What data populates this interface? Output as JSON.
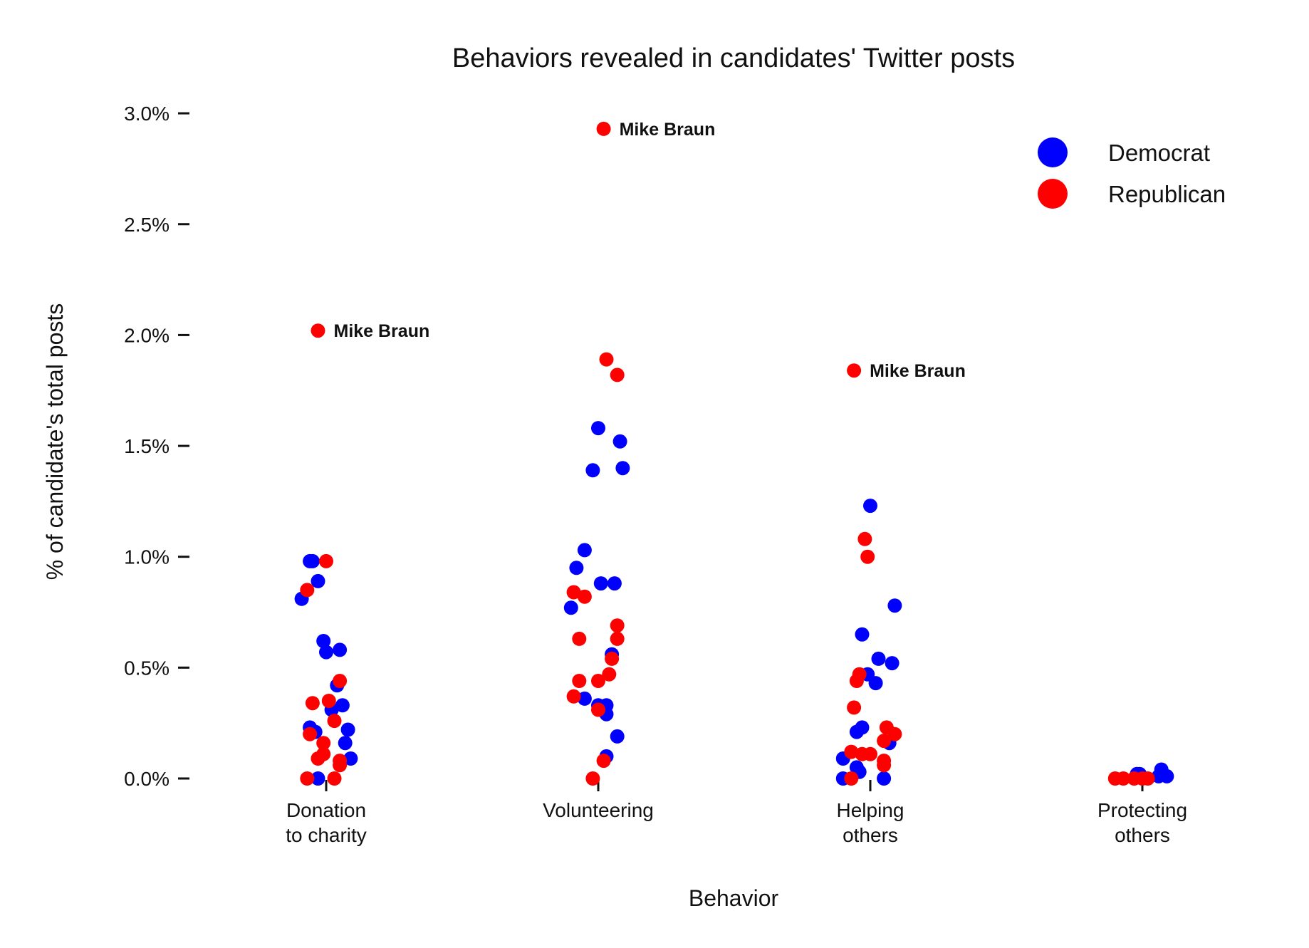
{
  "chart_data": {
    "type": "scatter",
    "title": "Behaviors revealed in candidates' Twitter posts",
    "xlabel": "Behavior",
    "ylabel": "% of candidate's total posts",
    "categories": [
      [
        "Donation",
        "to charity"
      ],
      [
        "Volunteering"
      ],
      [
        "Helping",
        "others"
      ],
      [
        "Protecting",
        "others"
      ]
    ],
    "ylim": [
      0,
      3.0
    ],
    "yticks": [
      "0.0%",
      "0.5%",
      "1.0%",
      "1.5%",
      "2.0%",
      "2.5%",
      "3.0%"
    ],
    "grid": false,
    "legend_position": "top-right",
    "series": [
      {
        "name": "Democrat",
        "color": "#0000ff",
        "points": [
          {
            "cat": 0,
            "jitter": -0.06,
            "y": 0.98
          },
          {
            "cat": 0,
            "jitter": -0.05,
            "y": 0.98
          },
          {
            "cat": 0,
            "jitter": -0.03,
            "y": 0.89
          },
          {
            "cat": 0,
            "jitter": -0.09,
            "y": 0.81
          },
          {
            "cat": 0,
            "jitter": -0.01,
            "y": 0.62
          },
          {
            "cat": 0,
            "jitter": 0.05,
            "y": 0.58
          },
          {
            "cat": 0,
            "jitter": 0.0,
            "y": 0.57
          },
          {
            "cat": 0,
            "jitter": 0.04,
            "y": 0.42
          },
          {
            "cat": 0,
            "jitter": 0.06,
            "y": 0.33
          },
          {
            "cat": 0,
            "jitter": 0.02,
            "y": 0.31
          },
          {
            "cat": 0,
            "jitter": -0.06,
            "y": 0.23
          },
          {
            "cat": 0,
            "jitter": -0.04,
            "y": 0.21
          },
          {
            "cat": 0,
            "jitter": 0.08,
            "y": 0.22
          },
          {
            "cat": 0,
            "jitter": 0.07,
            "y": 0.16
          },
          {
            "cat": 0,
            "jitter": 0.09,
            "y": 0.09
          },
          {
            "cat": 0,
            "jitter": -0.03,
            "y": 0.0
          },
          {
            "cat": 1,
            "jitter": 0.0,
            "y": 1.58
          },
          {
            "cat": 1,
            "jitter": 0.08,
            "y": 1.52
          },
          {
            "cat": 1,
            "jitter": -0.02,
            "y": 1.39
          },
          {
            "cat": 1,
            "jitter": 0.09,
            "y": 1.4
          },
          {
            "cat": 1,
            "jitter": -0.05,
            "y": 1.03
          },
          {
            "cat": 1,
            "jitter": -0.08,
            "y": 0.95
          },
          {
            "cat": 1,
            "jitter": 0.01,
            "y": 0.88
          },
          {
            "cat": 1,
            "jitter": 0.06,
            "y": 0.88
          },
          {
            "cat": 1,
            "jitter": -0.1,
            "y": 0.77
          },
          {
            "cat": 1,
            "jitter": 0.05,
            "y": 0.56
          },
          {
            "cat": 1,
            "jitter": -0.05,
            "y": 0.36
          },
          {
            "cat": 1,
            "jitter": 0.0,
            "y": 0.33
          },
          {
            "cat": 1,
            "jitter": 0.03,
            "y": 0.33
          },
          {
            "cat": 1,
            "jitter": 0.03,
            "y": 0.29
          },
          {
            "cat": 1,
            "jitter": 0.07,
            "y": 0.19
          },
          {
            "cat": 1,
            "jitter": 0.03,
            "y": 0.1
          },
          {
            "cat": 2,
            "jitter": 0.0,
            "y": 1.23
          },
          {
            "cat": 2,
            "jitter": 0.09,
            "y": 0.78
          },
          {
            "cat": 2,
            "jitter": -0.03,
            "y": 0.65
          },
          {
            "cat": 2,
            "jitter": 0.03,
            "y": 0.54
          },
          {
            "cat": 2,
            "jitter": 0.08,
            "y": 0.52
          },
          {
            "cat": 2,
            "jitter": -0.01,
            "y": 0.47
          },
          {
            "cat": 2,
            "jitter": 0.02,
            "y": 0.43
          },
          {
            "cat": 2,
            "jitter": -0.03,
            "y": 0.23
          },
          {
            "cat": 2,
            "jitter": -0.05,
            "y": 0.21
          },
          {
            "cat": 2,
            "jitter": 0.07,
            "y": 0.16
          },
          {
            "cat": 2,
            "jitter": -0.1,
            "y": 0.09
          },
          {
            "cat": 2,
            "jitter": -0.05,
            "y": 0.05
          },
          {
            "cat": 2,
            "jitter": -0.04,
            "y": 0.03
          },
          {
            "cat": 2,
            "jitter": -0.1,
            "y": 0.0
          },
          {
            "cat": 2,
            "jitter": 0.05,
            "y": 0.0
          },
          {
            "cat": 3,
            "jitter": -0.02,
            "y": 0.02
          },
          {
            "cat": 3,
            "jitter": -0.01,
            "y": 0.02
          },
          {
            "cat": 3,
            "jitter": 0.07,
            "y": 0.04
          },
          {
            "cat": 3,
            "jitter": 0.09,
            "y": 0.01
          },
          {
            "cat": 3,
            "jitter": 0.06,
            "y": 0.01
          }
        ]
      },
      {
        "name": "Republican",
        "color": "#ff0000",
        "points": [
          {
            "cat": 0,
            "jitter": -0.03,
            "y": 2.02
          },
          {
            "cat": 0,
            "jitter": 0.0,
            "y": 0.98
          },
          {
            "cat": 0,
            "jitter": -0.07,
            "y": 0.85
          },
          {
            "cat": 0,
            "jitter": 0.05,
            "y": 0.44
          },
          {
            "cat": 0,
            "jitter": 0.01,
            "y": 0.35
          },
          {
            "cat": 0,
            "jitter": -0.05,
            "y": 0.34
          },
          {
            "cat": 0,
            "jitter": 0.03,
            "y": 0.26
          },
          {
            "cat": 0,
            "jitter": -0.06,
            "y": 0.2
          },
          {
            "cat": 0,
            "jitter": -0.01,
            "y": 0.16
          },
          {
            "cat": 0,
            "jitter": -0.01,
            "y": 0.11
          },
          {
            "cat": 0,
            "jitter": -0.03,
            "y": 0.09
          },
          {
            "cat": 0,
            "jitter": 0.05,
            "y": 0.08
          },
          {
            "cat": 0,
            "jitter": 0.05,
            "y": 0.06
          },
          {
            "cat": 0,
            "jitter": -0.07,
            "y": 0.0
          },
          {
            "cat": 0,
            "jitter": 0.03,
            "y": 0.0
          },
          {
            "cat": 1,
            "jitter": 0.02,
            "y": 2.93
          },
          {
            "cat": 1,
            "jitter": 0.03,
            "y": 1.89
          },
          {
            "cat": 1,
            "jitter": 0.07,
            "y": 1.82
          },
          {
            "cat": 1,
            "jitter": -0.09,
            "y": 0.84
          },
          {
            "cat": 1,
            "jitter": -0.05,
            "y": 0.82
          },
          {
            "cat": 1,
            "jitter": 0.07,
            "y": 0.69
          },
          {
            "cat": 1,
            "jitter": -0.07,
            "y": 0.63
          },
          {
            "cat": 1,
            "jitter": 0.07,
            "y": 0.63
          },
          {
            "cat": 1,
            "jitter": 0.05,
            "y": 0.54
          },
          {
            "cat": 1,
            "jitter": 0.04,
            "y": 0.47
          },
          {
            "cat": 1,
            "jitter": -0.07,
            "y": 0.44
          },
          {
            "cat": 1,
            "jitter": 0.0,
            "y": 0.44
          },
          {
            "cat": 1,
            "jitter": -0.09,
            "y": 0.37
          },
          {
            "cat": 1,
            "jitter": 0.0,
            "y": 0.31
          },
          {
            "cat": 1,
            "jitter": 0.02,
            "y": 0.08
          },
          {
            "cat": 1,
            "jitter": -0.02,
            "y": 0.0
          },
          {
            "cat": 2,
            "jitter": -0.06,
            "y": 1.84
          },
          {
            "cat": 2,
            "jitter": -0.02,
            "y": 1.08
          },
          {
            "cat": 2,
            "jitter": -0.01,
            "y": 1.0
          },
          {
            "cat": 2,
            "jitter": -0.04,
            "y": 0.47
          },
          {
            "cat": 2,
            "jitter": -0.05,
            "y": 0.44
          },
          {
            "cat": 2,
            "jitter": -0.06,
            "y": 0.32
          },
          {
            "cat": 2,
            "jitter": 0.06,
            "y": 0.23
          },
          {
            "cat": 2,
            "jitter": 0.09,
            "y": 0.2
          },
          {
            "cat": 2,
            "jitter": 0.05,
            "y": 0.17
          },
          {
            "cat": 2,
            "jitter": -0.07,
            "y": 0.12
          },
          {
            "cat": 2,
            "jitter": -0.03,
            "y": 0.11
          },
          {
            "cat": 2,
            "jitter": 0.0,
            "y": 0.11
          },
          {
            "cat": 2,
            "jitter": 0.05,
            "y": 0.08
          },
          {
            "cat": 2,
            "jitter": 0.05,
            "y": 0.06
          },
          {
            "cat": 2,
            "jitter": -0.07,
            "y": 0.0
          },
          {
            "cat": 3,
            "jitter": -0.1,
            "y": 0.0
          },
          {
            "cat": 3,
            "jitter": -0.07,
            "y": 0.0
          },
          {
            "cat": 3,
            "jitter": -0.03,
            "y": 0.0
          },
          {
            "cat": 3,
            "jitter": 0.0,
            "y": 0.0
          },
          {
            "cat": 3,
            "jitter": 0.02,
            "y": 0.0
          }
        ]
      }
    ],
    "annotations": [
      {
        "text": "Mike Braun",
        "cat": 0,
        "jitter": -0.03,
        "y": 2.02
      },
      {
        "text": "Mike Braun",
        "cat": 1,
        "jitter": 0.02,
        "y": 2.93
      },
      {
        "text": "Mike Braun",
        "cat": 2,
        "jitter": -0.06,
        "y": 1.84
      }
    ]
  }
}
